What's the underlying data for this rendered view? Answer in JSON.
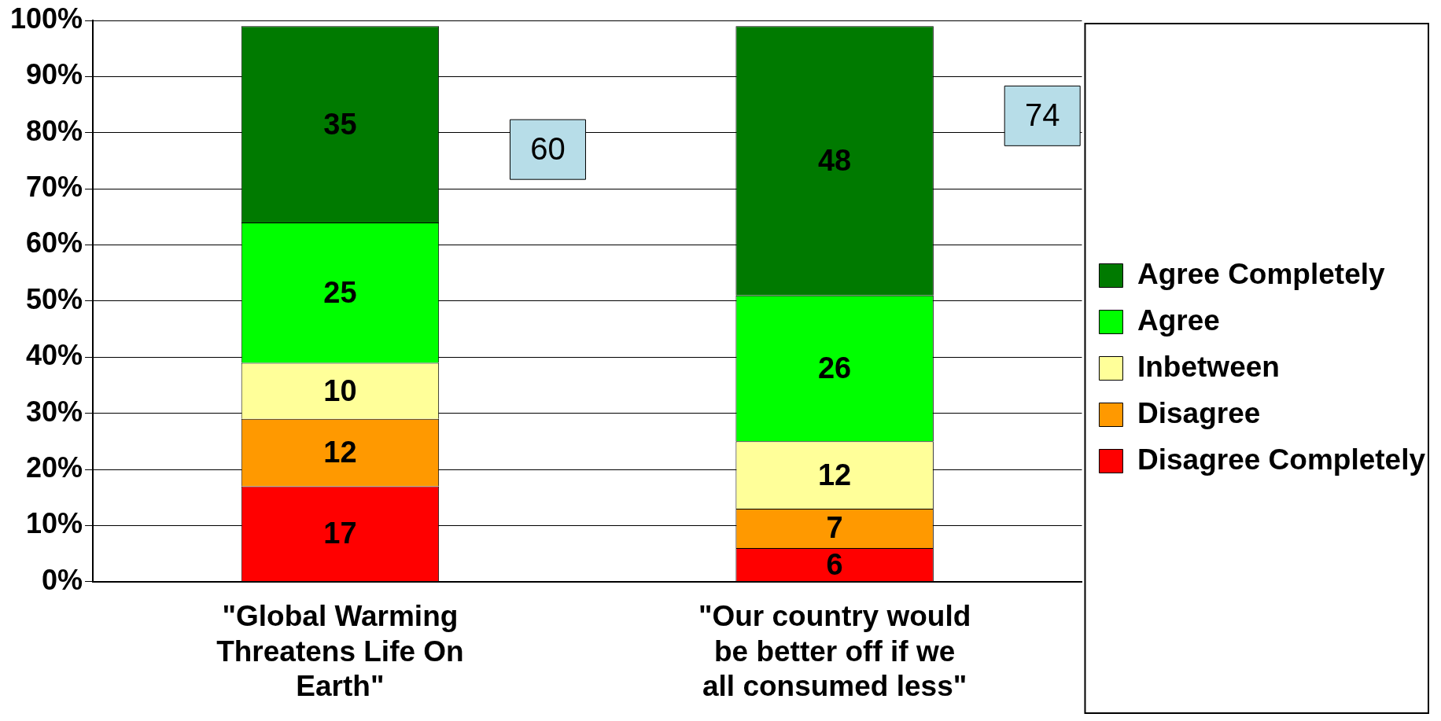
{
  "chart_data": {
    "type": "bar",
    "stacked": true,
    "categories": [
      "\"Global Warming Threatens Life On Earth\"",
      "\"Our country would be better off if we all consumed less\""
    ],
    "series": [
      {
        "name": "Disagree Completely",
        "color": "#ff0000",
        "values": [
          17,
          6
        ]
      },
      {
        "name": "Disagree",
        "color": "#ff9900",
        "values": [
          12,
          7
        ]
      },
      {
        "name": "Inbetween",
        "color": "#ffff99",
        "values": [
          10,
          12
        ]
      },
      {
        "name": "Agree",
        "color": "#00ff00",
        "values": [
          25,
          26
        ]
      },
      {
        "name": "Agree Completely",
        "color": "#007a00",
        "values": [
          35,
          48
        ]
      }
    ],
    "ylim": [
      0,
      100
    ],
    "yticks": [
      {
        "value": 0,
        "label": "0%"
      },
      {
        "value": 10,
        "label": "10%"
      },
      {
        "value": 20,
        "label": "20%"
      },
      {
        "value": 30,
        "label": "30%"
      },
      {
        "value": 40,
        "label": "40%"
      },
      {
        "value": 50,
        "label": "50%"
      },
      {
        "value": 60,
        "label": "60%"
      },
      {
        "value": 70,
        "label": "70%"
      },
      {
        "value": 80,
        "label": "80%"
      },
      {
        "value": 90,
        "label": "90%"
      },
      {
        "value": 100,
        "label": "100%"
      }
    ],
    "grid": "y",
    "legend": "right",
    "data_labels": true,
    "annotations": [
      "60",
      "74"
    ]
  }
}
